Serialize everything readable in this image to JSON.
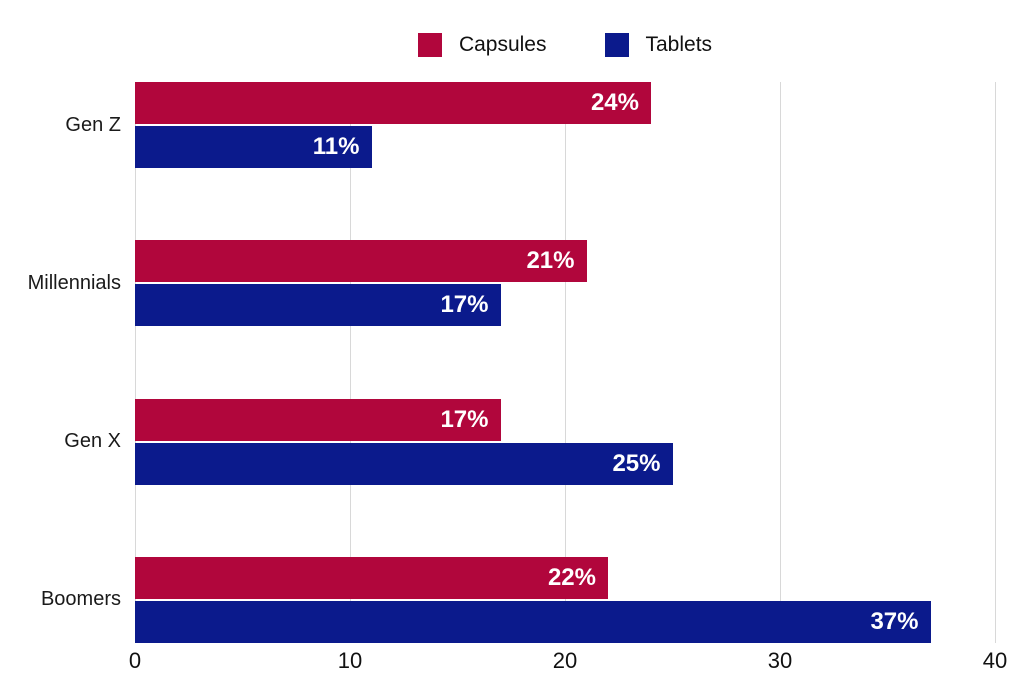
{
  "chart_data": {
    "type": "bar",
    "orientation": "horizontal",
    "categories": [
      "Gen Z",
      "Millennials",
      "Gen X",
      "Boomers"
    ],
    "series": [
      {
        "name": "Capsules",
        "color": "#B1063C",
        "values": [
          24,
          21,
          17,
          22
        ]
      },
      {
        "name": "Tablets",
        "color": "#0B1A8C",
        "values": [
          11,
          17,
          25,
          37
        ]
      }
    ],
    "value_suffix": "%",
    "xlim": [
      0,
      40
    ],
    "xticks": [
      0,
      10,
      20,
      30,
      40
    ],
    "grid": "vertical",
    "legend_position": "top-center"
  },
  "colors": {
    "background": "#ffffff",
    "gridline": "#d8d8d8",
    "axis_text": "#111111",
    "category_text": "#1a1a1a",
    "bar_label_text": "#ffffff"
  }
}
